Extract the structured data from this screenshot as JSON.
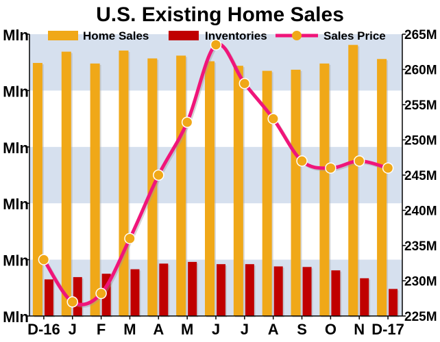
{
  "chart_data": {
    "type": "bar",
    "title": "U.S. Existing Home Sales",
    "categories": [
      "D-16",
      "J",
      "F",
      "M",
      "A",
      "M",
      "J",
      "J",
      "A",
      "S",
      "O",
      "N",
      "D-17"
    ],
    "series": [
      {
        "name": "Home Sales",
        "axis": "left",
        "type": "bar",
        "color": "#f0a818",
        "values": [
          5.49,
          5.69,
          5.48,
          5.71,
          5.57,
          5.62,
          5.52,
          5.44,
          5.35,
          5.37,
          5.48,
          5.81,
          5.56
        ]
      },
      {
        "name": "Inventories",
        "axis": "left",
        "type": "bar",
        "color": "#c00000",
        "values": [
          1.65,
          1.69,
          1.75,
          1.83,
          1.93,
          1.96,
          1.92,
          1.92,
          1.88,
          1.87,
          1.81,
          1.67,
          1.48
        ]
      },
      {
        "name": "Sales Price",
        "axis": "right",
        "type": "line",
        "color": "#f0157a",
        "marker_color": "#f0a818",
        "values": [
          233000,
          227000,
          228200,
          236000,
          245000,
          252500,
          263500,
          258000,
          253000,
          247000,
          246000,
          247000,
          246000
        ]
      }
    ],
    "y_left": {
      "ylim": [
        1.0,
        6.0
      ],
      "ticks": [
        {
          "value": 1.0,
          "label": "Mln"
        },
        {
          "value": 2.0,
          "label": "Mln"
        },
        {
          "value": 3.0,
          "label": "Mln"
        },
        {
          "value": 4.0,
          "label": "Mln"
        },
        {
          "value": 5.0,
          "label": "Mln"
        },
        {
          "value": 6.0,
          "label": "Mln"
        }
      ]
    },
    "y_right": {
      "ylim": [
        225000,
        265000
      ],
      "ticks": [
        {
          "value": 225000,
          "label": "225M"
        },
        {
          "value": 230000,
          "label": "230M"
        },
        {
          "value": 235000,
          "label": "235M"
        },
        {
          "value": 240000,
          "label": "240M"
        },
        {
          "value": 245000,
          "label": "245M"
        },
        {
          "value": 250000,
          "label": "250M"
        },
        {
          "value": 255000,
          "label": "255M"
        },
        {
          "value": 260000,
          "label": "260M"
        },
        {
          "value": 265000,
          "label": "265M"
        }
      ]
    },
    "legend_position": "top",
    "background_bands": true,
    "band_color": "#d6e0ee"
  }
}
